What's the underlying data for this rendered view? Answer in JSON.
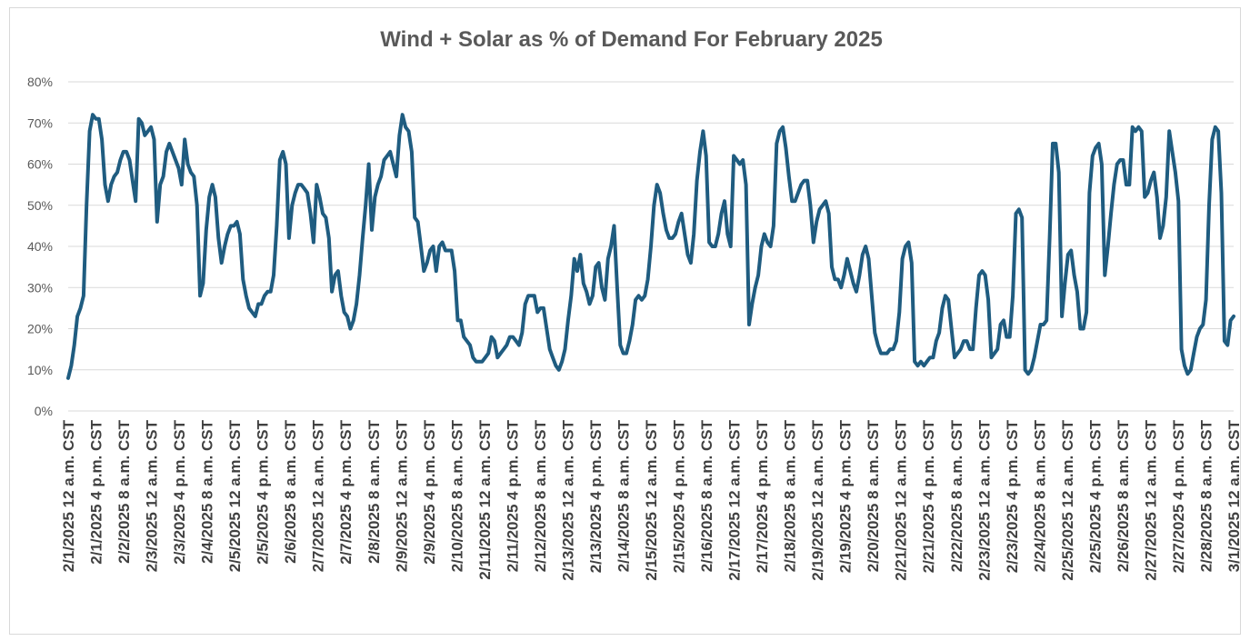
{
  "chart_data": {
    "type": "line",
    "title": "Wind + Solar as % of Demand For February 2025",
    "xlabel": "",
    "ylabel": "",
    "ylim": [
      0,
      80
    ],
    "y_ticks": [
      "0%",
      "10%",
      "20%",
      "30%",
      "40%",
      "50%",
      "60%",
      "70%",
      "80%"
    ],
    "grid": "horizontal",
    "line_color": "#1f5c80",
    "x_tick_labels": [
      "2/1/2025 12 a.m. CST",
      "2/1/2025 4 p.m. CST",
      "2/2/2025 8 a.m. CST",
      "2/3/2025 12 a.m. CST",
      "2/3/2025 4 p.m. CST",
      "2/4/2025 8 a.m. CST",
      "2/5/2025 12 a.m. CST",
      "2/5/2025 4 p.m. CST",
      "2/6/2025 8 a.m. CST",
      "2/7/2025 12 a.m. CST",
      "2/7/2025 4 p.m. CST",
      "2/8/2025 8 a.m. CST",
      "2/9/2025 12 a.m. CST",
      "2/9/2025 4 p.m. CST",
      "2/10/2025 8 a.m. CST",
      "2/11/2025 12 a.m. CST",
      "2/11/2025 4 p.m. CST",
      "2/12/2025 8 a.m. CST",
      "2/13/2025 12 a.m. CST",
      "2/13/2025 4 p.m. CST",
      "2/14/2025 8 a.m. CST",
      "2/15/2025 12 a.m. CST",
      "2/15/2025 4 p.m. CST",
      "2/16/2025 8 a.m. CST",
      "2/17/2025 12 a.m. CST",
      "2/17/2025 4 p.m. CST",
      "2/18/2025 8 a.m. CST",
      "2/19/2025 12 a.m. CST",
      "2/19/2025 4 p.m. CST",
      "2/20/2025 8 a.m. CST",
      "2/21/2025 12 a.m. CST",
      "2/21/2025 4 p.m. CST",
      "2/22/2025 8 a.m. CST",
      "2/23/2025 12 a.m. CST",
      "2/23/2025 4 p.m. CST",
      "2/24/2025 8 a.m. CST",
      "2/25/2025 12 a.m. CST",
      "2/25/2025 4 p.m. CST",
      "2/26/2025 8 a.m. CST",
      "2/27/2025 12 a.m. CST",
      "2/27/2025 4 p.m. CST",
      "2/28/2025 8 a.m. CST",
      "3/1/2025 12 a.m. CST"
    ],
    "series": [
      {
        "values": [
          8,
          11,
          16,
          23,
          25,
          28,
          50,
          68,
          72,
          71,
          71,
          66,
          55,
          51,
          55,
          57,
          58,
          61,
          63,
          63,
          61,
          56,
          51,
          71,
          70,
          67,
          68,
          69,
          66,
          46,
          55,
          57,
          63,
          65,
          63,
          61,
          59,
          55,
          66,
          60,
          58,
          57,
          50,
          28,
          31,
          44,
          52,
          55,
          52,
          42,
          36,
          40,
          43,
          45,
          45,
          46,
          43,
          32,
          28,
          25,
          24,
          23,
          26,
          26,
          28,
          29,
          29,
          33,
          45,
          61,
          63,
          60,
          42,
          50,
          53,
          55,
          55,
          54,
          53,
          48,
          41,
          55,
          52,
          48,
          47,
          42,
          29,
          33,
          34,
          28,
          24,
          23,
          20,
          22,
          26,
          33,
          42,
          50,
          60,
          44,
          52,
          55,
          57,
          61,
          62,
          63,
          60,
          57,
          67,
          72,
          69,
          68,
          63,
          47,
          46,
          40,
          34,
          36,
          39,
          40,
          34,
          40,
          41,
          39,
          39,
          39,
          34,
          22,
          22,
          18,
          17,
          16,
          13,
          12,
          12,
          12,
          13,
          14,
          18,
          17,
          13,
          14,
          15,
          16,
          18,
          18,
          17,
          16,
          19,
          26,
          28,
          28,
          28,
          24,
          25,
          25,
          20,
          15,
          13,
          11,
          10,
          12,
          15,
          22,
          28,
          37,
          34,
          38,
          31,
          29,
          26,
          28,
          35,
          36,
          30,
          27,
          37,
          40,
          45,
          30,
          16,
          14,
          14,
          17,
          21,
          27,
          28,
          27,
          28,
          32,
          40,
          50,
          55,
          53,
          48,
          44,
          42,
          42,
          43,
          46,
          48,
          43,
          38,
          36,
          43,
          56,
          63,
          68,
          62,
          41,
          40,
          40,
          43,
          48,
          51,
          43,
          40,
          62,
          61,
          60,
          61,
          55,
          21,
          26,
          30,
          33,
          40,
          43,
          41,
          40,
          45,
          65,
          68,
          69,
          64,
          57,
          51,
          51,
          53,
          55,
          56,
          56,
          50,
          41,
          46,
          49,
          50,
          51,
          48,
          35,
          32,
          32,
          30,
          33,
          37,
          34,
          31,
          29,
          33,
          38,
          40,
          37,
          28,
          19,
          16,
          14,
          14,
          14,
          15,
          15,
          17,
          24,
          37,
          40,
          41,
          36,
          12,
          11,
          12,
          11,
          12,
          13,
          13,
          17,
          19,
          25,
          28,
          27,
          20,
          13,
          14,
          15,
          17,
          17,
          15,
          15,
          25,
          33,
          34,
          33,
          27,
          13,
          14,
          15,
          21,
          22,
          18,
          18,
          28,
          48,
          49,
          47,
          10,
          9,
          10,
          13,
          17,
          21,
          21,
          22,
          42,
          65,
          65,
          58,
          23,
          31,
          38,
          39,
          33,
          29,
          20,
          20,
          24,
          53,
          62,
          64,
          65,
          60,
          33,
          40,
          48,
          55,
          60,
          61,
          61,
          55,
          55,
          69,
          68,
          69,
          68,
          52,
          53,
          56,
          58,
          52,
          42,
          45,
          52,
          68,
          63,
          58,
          51,
          15,
          11,
          9,
          10,
          14,
          18,
          20,
          21,
          27,
          50,
          66,
          69,
          68,
          53,
          17,
          16,
          22,
          23
        ]
      }
    ]
  }
}
